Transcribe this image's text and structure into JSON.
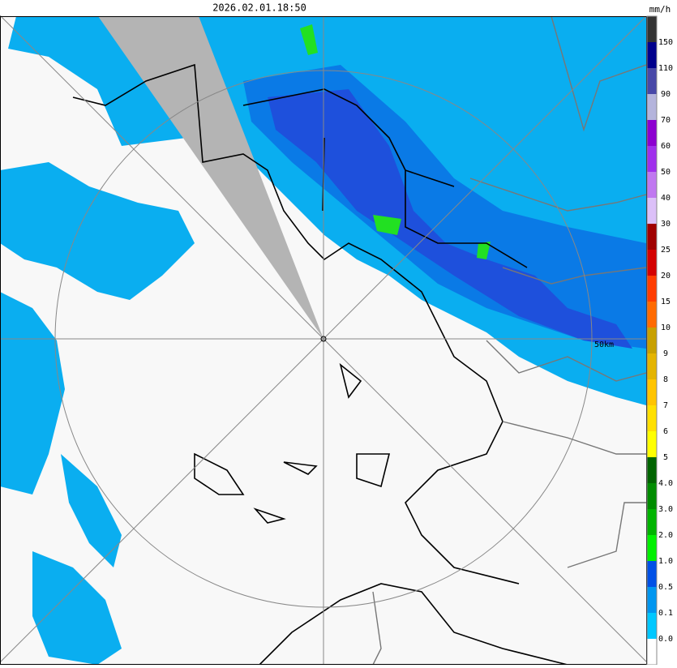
{
  "header": {
    "timestamp": "2026.02.01.18:50",
    "unit": "mm/h"
  },
  "map": {
    "range_label": "50km"
  },
  "legend": {
    "labels": [
      "150",
      "110",
      "90",
      "70",
      "60",
      "50",
      "40",
      "30",
      "25",
      "20",
      "15",
      "10",
      "9",
      "8",
      "7",
      "6",
      "5",
      "4.0",
      "3.0",
      "2.0",
      "1.0",
      "0.5",
      "0.1",
      "0.0"
    ],
    "colors": [
      "#333333",
      "#00008c",
      "#4848a8",
      "#b4b4dc",
      "#8c00d0",
      "#a030ec",
      "#c078f0",
      "#dcc0f8",
      "#a00000",
      "#d40000",
      "#ff3c00",
      "#ff6a00",
      "#c8a000",
      "#e4b400",
      "#ffc400",
      "#ffe000",
      "#ffff00",
      "#006400",
      "#008c00",
      "#00b400",
      "#00f000",
      "#0050e6",
      "#0096f0",
      "#00c8ff",
      "#ffffff"
    ]
  }
}
